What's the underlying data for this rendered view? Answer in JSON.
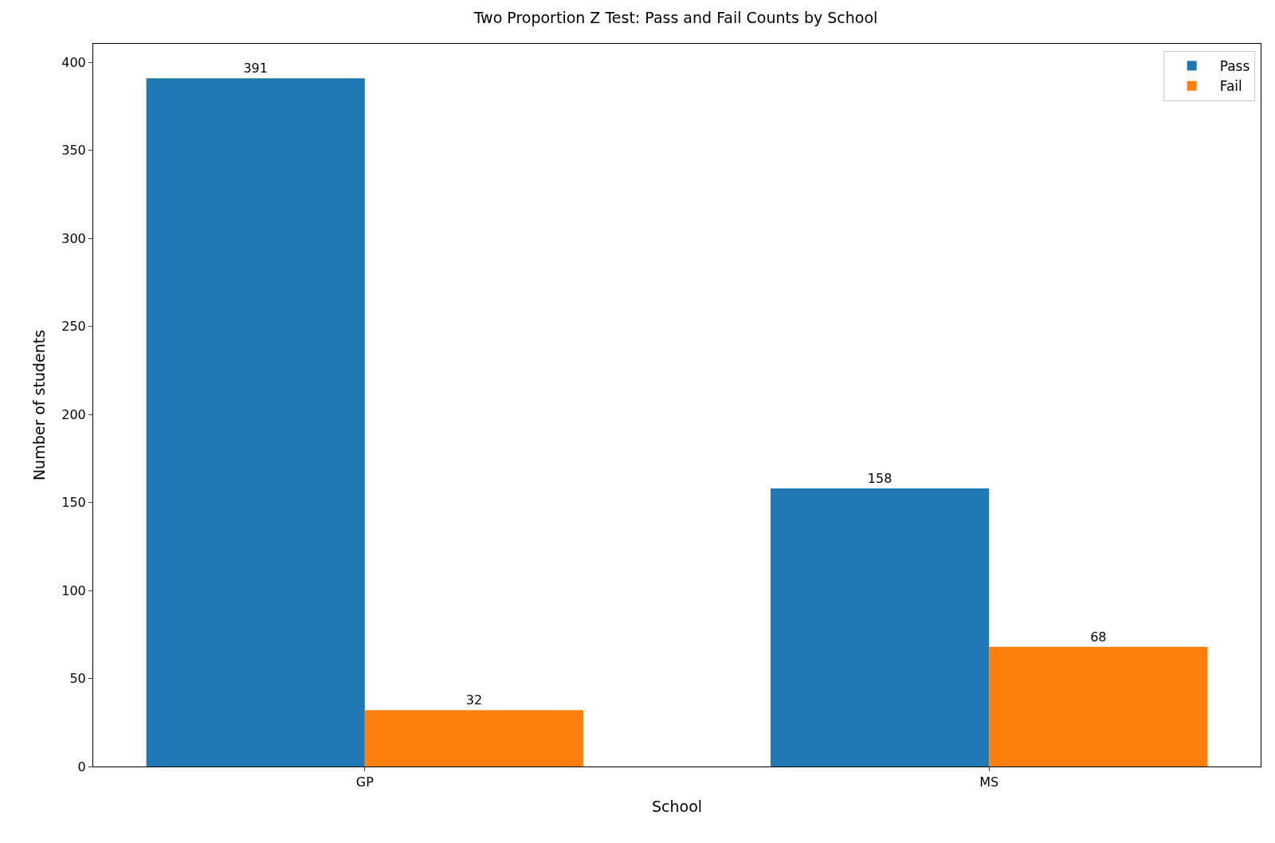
{
  "chart_data": {
    "type": "bar",
    "title": "Two Proportion Z Test: Pass and Fail Counts by School",
    "xlabel": "School",
    "ylabel": "Number of students",
    "categories": [
      "GP",
      "MS"
    ],
    "series": [
      {
        "name": "Pass",
        "color": "#1f77b4",
        "values": [
          391,
          158
        ]
      },
      {
        "name": "Fail",
        "color": "#ff7f0e",
        "values": [
          32,
          68
        ]
      }
    ],
    "ylim": [
      0,
      410.55
    ],
    "yticks": [
      0,
      50,
      100,
      150,
      200,
      250,
      300,
      350,
      400
    ],
    "data_labels": true,
    "legend": "top right"
  }
}
